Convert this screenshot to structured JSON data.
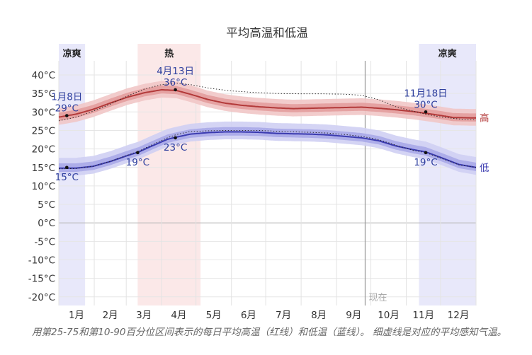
{
  "chart_data": {
    "type": "line",
    "title": "平均高温和低温",
    "caption": "用第25-75和第10-90百分位区间表示的每日平均高温（红线）和低温（蓝线）。 细虚线是对应的平均感知气温。",
    "y_unit": "°C",
    "ylim": [
      -22,
      43
    ],
    "y_ticks": [
      40,
      35,
      30,
      25,
      20,
      15,
      10,
      5,
      0,
      -5,
      -10,
      -15,
      -20
    ],
    "y_tick_labels": [
      "40°C",
      "35°C",
      "30°C",
      "25°C",
      "20°C",
      "15°C",
      "10°C",
      "5°C",
      "0°C",
      "-5°C",
      "-10°C",
      "-15°C",
      "-20°C"
    ],
    "x_range_days": [
      0,
      365
    ],
    "month_labels": [
      "1月",
      "2月",
      "3月",
      "4月",
      "5月",
      "6月",
      "7月",
      "8月",
      "9月",
      "10月",
      "11月",
      "12月"
    ],
    "seasons": [
      {
        "label": "凉爽",
        "start": 0,
        "end": 23,
        "color": "#e8e8fa",
        "show_label": true
      },
      {
        "label": "热",
        "start": 69,
        "end": 124,
        "color": "#fbe8e8",
        "show_label": true
      },
      {
        "label": "凉爽",
        "start": 315,
        "end": 365,
        "color": "#e8e8fa",
        "show_label": true
      }
    ],
    "now_marker": {
      "label": "现在",
      "day": 268
    },
    "series": [
      {
        "name": "高",
        "color": "#b33a3a",
        "band_colors": [
          "#f1c6c6",
          "#e39d9d"
        ],
        "points": [
          [
            0,
            28.6
          ],
          [
            15,
            29.4
          ],
          [
            30,
            30.7
          ],
          [
            45,
            32.4
          ],
          [
            60,
            34.0
          ],
          [
            75,
            35.2
          ],
          [
            90,
            36.0
          ],
          [
            103,
            35.8
          ],
          [
            115,
            34.8
          ],
          [
            130,
            33.4
          ],
          [
            145,
            32.4
          ],
          [
            160,
            31.8
          ],
          [
            175,
            31.4
          ],
          [
            190,
            31.1
          ],
          [
            205,
            30.9
          ],
          [
            220,
            31.0
          ],
          [
            235,
            31.1
          ],
          [
            250,
            31.2
          ],
          [
            265,
            31.3
          ],
          [
            280,
            31.0
          ],
          [
            295,
            30.6
          ],
          [
            310,
            30.1
          ],
          [
            322,
            29.6
          ],
          [
            335,
            29.0
          ],
          [
            345,
            28.5
          ],
          [
            360,
            28.4
          ],
          [
            365,
            28.4
          ]
        ],
        "band_inner": [
          1.2,
          1.0
        ],
        "band_outer": [
          2.4,
          2.1
        ],
        "feels_like": [
          [
            0,
            27.6
          ],
          [
            15,
            28.6
          ],
          [
            30,
            30.2
          ],
          [
            45,
            32.1
          ],
          [
            60,
            34.3
          ],
          [
            75,
            36.2
          ],
          [
            90,
            37.4
          ],
          [
            103,
            37.8
          ],
          [
            115,
            37.4
          ],
          [
            130,
            36.5
          ],
          [
            150,
            35.7
          ],
          [
            170,
            35.3
          ],
          [
            190,
            35.0
          ],
          [
            210,
            34.9
          ],
          [
            230,
            34.9
          ],
          [
            250,
            34.8
          ],
          [
            265,
            34.5
          ],
          [
            280,
            33.3
          ],
          [
            295,
            31.4
          ],
          [
            310,
            30.2
          ],
          [
            322,
            29.3
          ],
          [
            335,
            28.6
          ],
          [
            350,
            28.1
          ],
          [
            365,
            27.8
          ]
        ],
        "annotations": [
          {
            "day": 7,
            "value": 29,
            "date": "1月8日",
            "text": "29°C",
            "side": "above"
          },
          {
            "day": 102,
            "value": 36,
            "date": "4月13日",
            "text": "36°C",
            "side": "above"
          },
          {
            "day": 321,
            "value": 30,
            "date": "11月18日",
            "text": "30°C",
            "side": "above"
          }
        ]
      },
      {
        "name": "低",
        "color": "#3b3bb0",
        "band_colors": [
          "#cfcff3",
          "#a8a8e8"
        ],
        "points": [
          [
            0,
            14.8
          ],
          [
            15,
            14.8
          ],
          [
            30,
            15.3
          ],
          [
            45,
            16.6
          ],
          [
            60,
            18.2
          ],
          [
            70,
            19.2
          ],
          [
            80,
            20.6
          ],
          [
            95,
            22.6
          ],
          [
            103,
            23.2
          ],
          [
            115,
            24.0
          ],
          [
            130,
            24.4
          ],
          [
            145,
            24.6
          ],
          [
            160,
            24.6
          ],
          [
            175,
            24.5
          ],
          [
            190,
            24.2
          ],
          [
            205,
            24.1
          ],
          [
            220,
            24.0
          ],
          [
            235,
            23.8
          ],
          [
            250,
            23.4
          ],
          [
            265,
            23.0
          ],
          [
            280,
            22.2
          ],
          [
            295,
            20.8
          ],
          [
            310,
            19.8
          ],
          [
            321,
            19.2
          ],
          [
            335,
            17.6
          ],
          [
            350,
            15.8
          ],
          [
            365,
            15.0
          ]
        ],
        "band_inner": [
          1.3,
          1.0
        ],
        "band_outer": [
          2.8,
          2.0
        ],
        "feels_like": [
          [
            0,
            14.6
          ],
          [
            15,
            14.7
          ],
          [
            30,
            15.3
          ],
          [
            45,
            16.6
          ],
          [
            60,
            18.3
          ],
          [
            70,
            19.4
          ],
          [
            80,
            20.9
          ],
          [
            95,
            23.0
          ],
          [
            103,
            23.9
          ],
          [
            115,
            24.7
          ],
          [
            130,
            24.9
          ],
          [
            145,
            25.0
          ],
          [
            160,
            25.0
          ],
          [
            175,
            25.0
          ],
          [
            190,
            24.8
          ],
          [
            205,
            24.6
          ],
          [
            220,
            24.5
          ],
          [
            235,
            24.3
          ],
          [
            250,
            23.9
          ],
          [
            265,
            23.4
          ],
          [
            280,
            22.5
          ],
          [
            295,
            21.0
          ],
          [
            310,
            19.6
          ],
          [
            321,
            19.0
          ],
          [
            335,
            17.4
          ],
          [
            350,
            15.7
          ],
          [
            365,
            15.0
          ]
        ],
        "annotations": [
          {
            "day": 7,
            "value": 15,
            "date": "",
            "text": "15°C",
            "side": "below"
          },
          {
            "day": 69,
            "value": 19,
            "date": "",
            "text": "19°C",
            "side": "below"
          },
          {
            "day": 102,
            "value": 23,
            "date": "",
            "text": "23°C",
            "side": "below"
          },
          {
            "day": 321,
            "value": 19,
            "date": "",
            "text": "19°C",
            "side": "below"
          }
        ]
      }
    ]
  }
}
